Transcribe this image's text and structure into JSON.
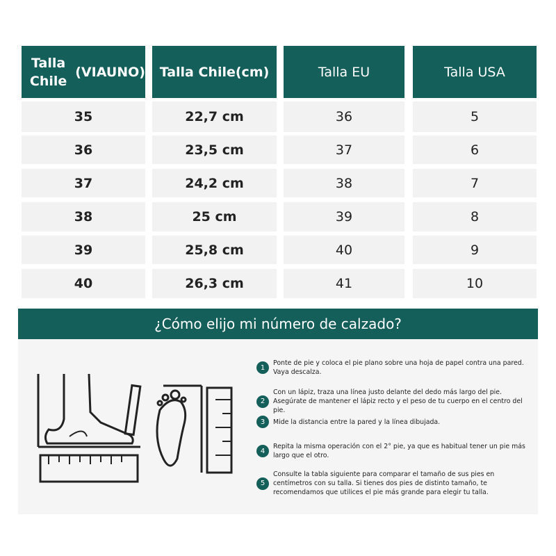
{
  "table": {
    "headers": [
      [
        "Talla Chile",
        "(VIAUNO)"
      ],
      [
        "Talla Chile",
        "(cm)"
      ],
      [
        "Talla EU"
      ],
      [
        "Talla USA"
      ]
    ],
    "rows": [
      [
        "35",
        "22,7 cm",
        "36",
        "5"
      ],
      [
        "36",
        "23,5 cm",
        "37",
        "6"
      ],
      [
        "37",
        "24,2 cm",
        "38",
        "7"
      ],
      [
        "38",
        "25 cm",
        "39",
        "8"
      ],
      [
        "39",
        "25,8 cm",
        "40",
        "9"
      ],
      [
        "40",
        "26,3 cm",
        "41",
        "10"
      ]
    ]
  },
  "guide": {
    "title": "¿Cómo elijo mi número de calzado?",
    "steps": [
      {
        "n": "1",
        "text": "Ponte de pie y coloca el pie plano sobre una hoja de papel contra una pared. Vaya descalza."
      },
      {
        "n": "2",
        "text": "Con un lápiz, traza una línea justo delante del  dedo más largo del pie. Asegúrate de mantener  el lápiz recto y el peso de tu cuerpo en el centro del pie."
      },
      {
        "n": "3",
        "text": "Mide la distancia entre la pared y la línea dibujada."
      },
      {
        "n": "4",
        "text": "Repita la misma operación con el 2° pie, ya que es habitual tener un pie más largo que el otro."
      },
      {
        "n": "5",
        "text": "Consulte la tabla siguiente para comparar el tamaño de sus pies en centímetros con su talla. Si tienes dos pies de distinto tamaño, te recomendamos que utilices el pie más grande para elegir tu talla."
      }
    ]
  },
  "colors": {
    "accent": "#155f5b",
    "row": "#f2f2f2"
  }
}
